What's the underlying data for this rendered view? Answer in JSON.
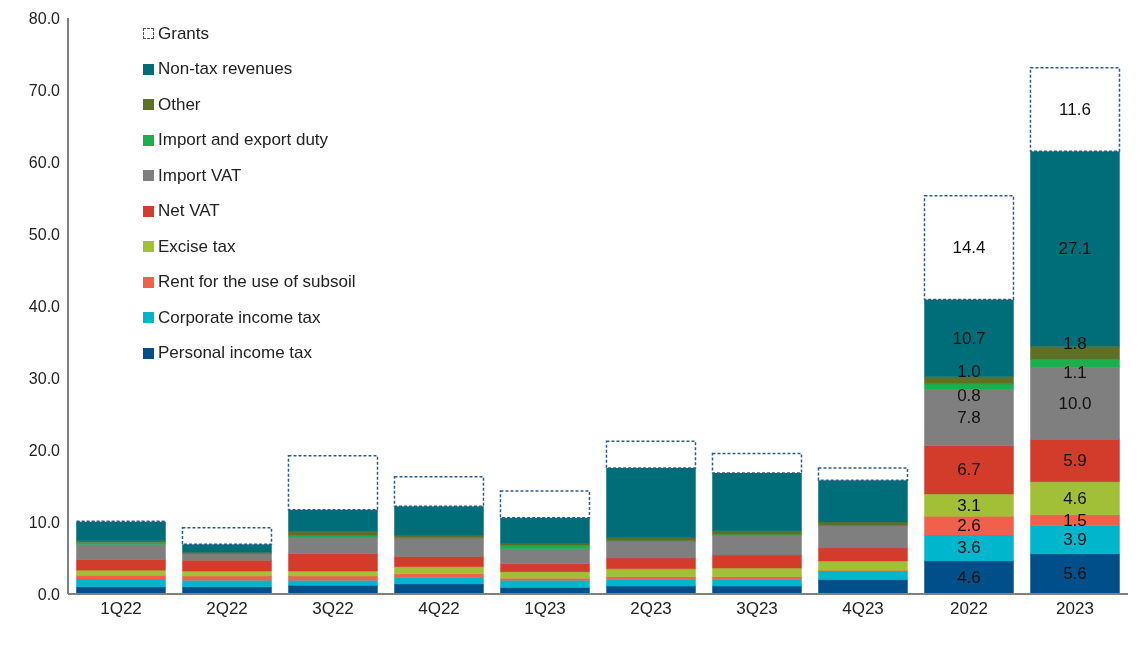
{
  "chart_data": {
    "type": "bar",
    "stacked": true,
    "categories": [
      "1Q22",
      "2Q22",
      "3Q22",
      "4Q22",
      "1Q23",
      "2Q23",
      "3Q23",
      "4Q23",
      "2022",
      "2023"
    ],
    "ylim": [
      0,
      80
    ],
    "yticks": [
      {
        "value": 0,
        "label": "0.0"
      },
      {
        "value": 10,
        "label": "10.0"
      },
      {
        "value": 20,
        "label": "20.0"
      },
      {
        "value": 30,
        "label": "30.0"
      },
      {
        "value": 40,
        "label": "40.0"
      },
      {
        "value": 50,
        "label": "50.0"
      },
      {
        "value": 60,
        "label": "60.0"
      },
      {
        "value": 70,
        "label": "70.0"
      },
      {
        "value": 80,
        "label": "80.0"
      }
    ],
    "grid": false,
    "legend": "top left",
    "series": [
      {
        "name": "Personal income tax",
        "color": "#004f8a",
        "values": [
          1.0,
          1.0,
          1.2,
          1.4,
          0.9,
          1.1,
          1.1,
          2.0,
          4.6,
          5.6
        ],
        "value_labels": [
          null,
          null,
          null,
          null,
          null,
          null,
          null,
          null,
          "4.6",
          "5.6"
        ]
      },
      {
        "name": "Corporate income tax",
        "color": "#00b6cc",
        "values": [
          1.1,
          0.9,
          0.7,
          0.9,
          1.0,
          0.9,
          0.9,
          1.2,
          3.6,
          3.9
        ],
        "value_labels": [
          null,
          null,
          null,
          null,
          null,
          null,
          null,
          null,
          "3.6",
          "3.9"
        ]
      },
      {
        "name": "Rent for the use of subsoil",
        "color": "#f0604a",
        "values": [
          0.5,
          0.6,
          0.6,
          0.5,
          0.3,
          0.4,
          0.4,
          0.1,
          2.6,
          1.5
        ],
        "value_labels": [
          null,
          null,
          null,
          null,
          null,
          null,
          null,
          null,
          "2.6",
          "1.5"
        ]
      },
      {
        "name": "Excise tax",
        "color": "#a2c037",
        "values": [
          0.7,
          0.7,
          0.7,
          1.0,
          0.9,
          1.1,
          1.2,
          1.3,
          3.1,
          4.6
        ],
        "value_labels": [
          null,
          null,
          null,
          null,
          null,
          null,
          null,
          null,
          "3.1",
          "4.6"
        ]
      },
      {
        "name": "Net VAT",
        "color": "#d33c2a",
        "values": [
          1.5,
          1.5,
          2.4,
          1.4,
          1.1,
          1.5,
          1.8,
          1.8,
          6.7,
          5.9
        ],
        "value_labels": [
          null,
          null,
          null,
          null,
          null,
          null,
          null,
          null,
          "6.7",
          "5.9"
        ]
      },
      {
        "name": "Import VAT",
        "color": "#7f7f7f",
        "values": [
          2.1,
          0.9,
          2.3,
          2.6,
          2.1,
          2.3,
          2.8,
          3.1,
          7.8,
          10.0
        ],
        "value_labels": [
          null,
          null,
          null,
          null,
          null,
          null,
          null,
          null,
          "7.8",
          "10.0"
        ]
      },
      {
        "name": "Import and export duty",
        "color": "#1aaf4f",
        "values": [
          0.3,
          null,
          0.3,
          null,
          0.5,
          0.1,
          0.1,
          null,
          0.8,
          1.1
        ],
        "value_labels": [
          null,
          null,
          null,
          null,
          null,
          null,
          null,
          null,
          "0.8",
          "1.1"
        ]
      },
      {
        "name": "Other",
        "color": "#5e7025",
        "values": [
          0.2,
          0.2,
          0.5,
          0.4,
          0.2,
          0.4,
          0.5,
          0.5,
          1.0,
          1.8
        ],
        "value_labels": [
          null,
          null,
          null,
          null,
          null,
          null,
          null,
          null,
          "1.0",
          "1.8"
        ]
      },
      {
        "name": "Non-tax revenues",
        "color": "#006e78",
        "values": [
          2.6,
          1.1,
          3.0,
          4.0,
          3.6,
          9.7,
          8.0,
          5.8,
          10.7,
          27.1
        ],
        "value_labels": [
          null,
          null,
          null,
          null,
          null,
          null,
          null,
          null,
          "10.7",
          "27.1"
        ]
      },
      {
        "name": "Grants",
        "color": "#2e5c8a",
        "line_style": "dashed",
        "values": [
          0.1,
          2.3,
          7.5,
          4.1,
          3.7,
          3.7,
          2.7,
          1.7,
          14.4,
          11.6
        ],
        "value_labels": [
          null,
          null,
          null,
          null,
          null,
          null,
          null,
          null,
          "14.4",
          "11.6"
        ]
      }
    ]
  }
}
